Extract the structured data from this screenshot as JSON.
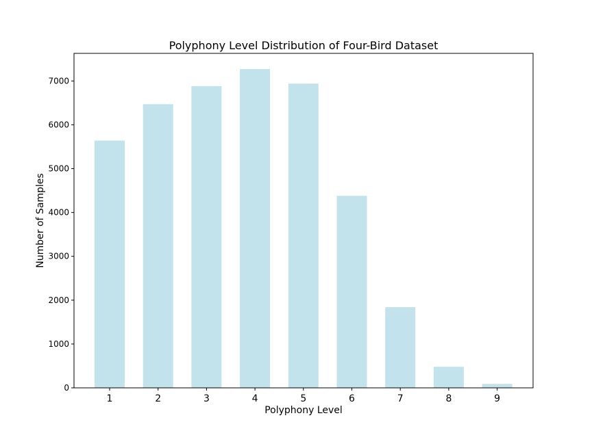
{
  "chart_data": {
    "type": "bar",
    "title": "Polyphony Level Distribution of Four-Bird Dataset",
    "xlabel": "Polyphony Level",
    "ylabel": "Number of Samples",
    "categories": [
      "1",
      "2",
      "3",
      "4",
      "5",
      "6",
      "7",
      "8",
      "9"
    ],
    "values": [
      5640,
      6470,
      6880,
      7270,
      6940,
      4380,
      1840,
      480,
      90
    ],
    "yticks": [
      0,
      1000,
      2000,
      3000,
      4000,
      5000,
      6000,
      7000
    ],
    "ylim": [
      0,
      7630
    ],
    "grid": false,
    "bar_color": "#add8e6",
    "bar_opacity": 0.75
  }
}
